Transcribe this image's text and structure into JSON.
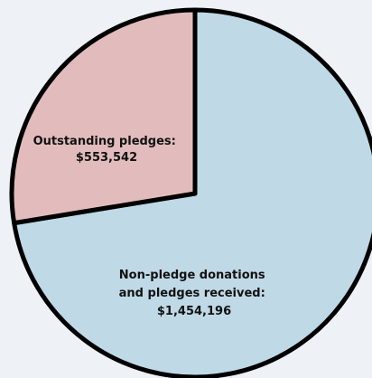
{
  "chart_data": {
    "type": "pie",
    "slices": [
      {
        "label_lines": [
          "Non-pledge donations",
          "and pledges received:",
          "$1,454,196"
        ],
        "value": 1454196,
        "color": "#bfd9e6"
      },
      {
        "label_lines": [
          "Outstanding pledges:",
          "$553,542"
        ],
        "value": 553542,
        "color": "#e2bcbc"
      }
    ],
    "stroke_color": "#000000",
    "background": "#eef2f7",
    "legend": "none"
  }
}
